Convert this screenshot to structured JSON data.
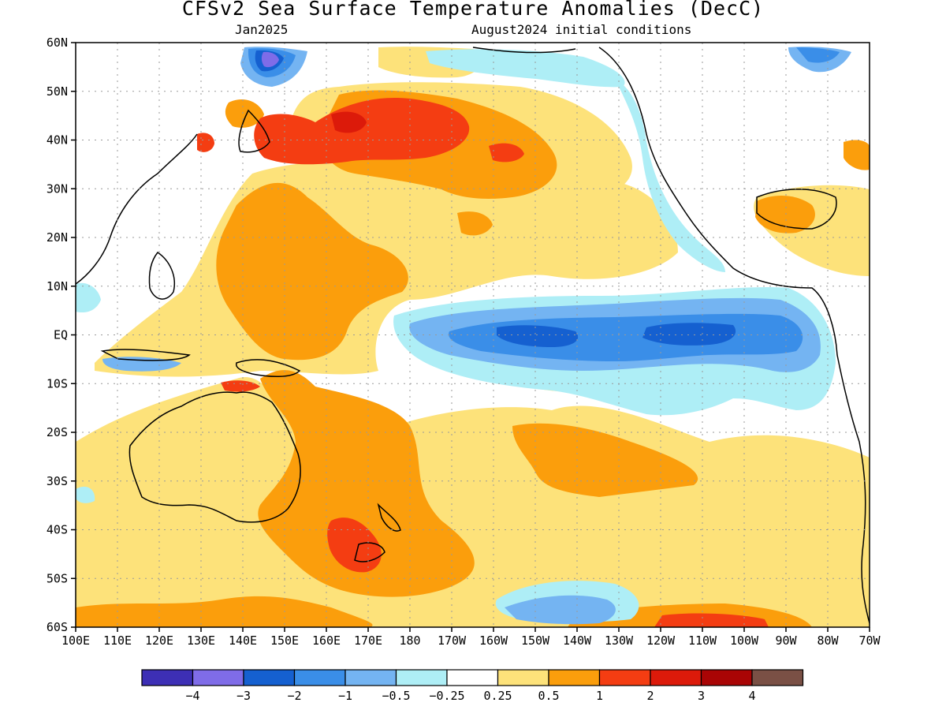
{
  "title": "CFSv2 Sea Surface Temperature Anomalies (DecC)",
  "subtitle_left": "Jan2025",
  "subtitle_right": "August2024 initial conditions",
  "map": {
    "lat_labels": [
      "60N",
      "50N",
      "40N",
      "30N",
      "20N",
      "10N",
      "EQ",
      "10S",
      "20S",
      "30S",
      "40S",
      "50S",
      "60S"
    ],
    "lon_labels": [
      "100E",
      "110E",
      "120E",
      "130E",
      "140E",
      "150E",
      "160E",
      "170E",
      "180",
      "170W",
      "160W",
      "150W",
      "140W",
      "130W",
      "120W",
      "110W",
      "100W",
      "90W",
      "80W",
      "70W"
    ],
    "lat_range": [
      -60,
      60
    ],
    "lon_range": [
      "100E",
      "70W"
    ],
    "grid": "dotted"
  },
  "colorbar": {
    "colors": [
      "#3d2fb5",
      "#7f6ce8",
      "#1560d0",
      "#3a8ee8",
      "#74b4f2",
      "#aeeef6",
      "#ffffff",
      "#fde27a",
      "#fb9e0c",
      "#f43d12",
      "#dc1a0a",
      "#a90505",
      "#7a5045"
    ],
    "labels": [
      "-4",
      "-3",
      "-2",
      "-1",
      "-0.5",
      "-0.25",
      "0.25",
      "0.5",
      "1",
      "2",
      "3",
      "4"
    ]
  }
}
